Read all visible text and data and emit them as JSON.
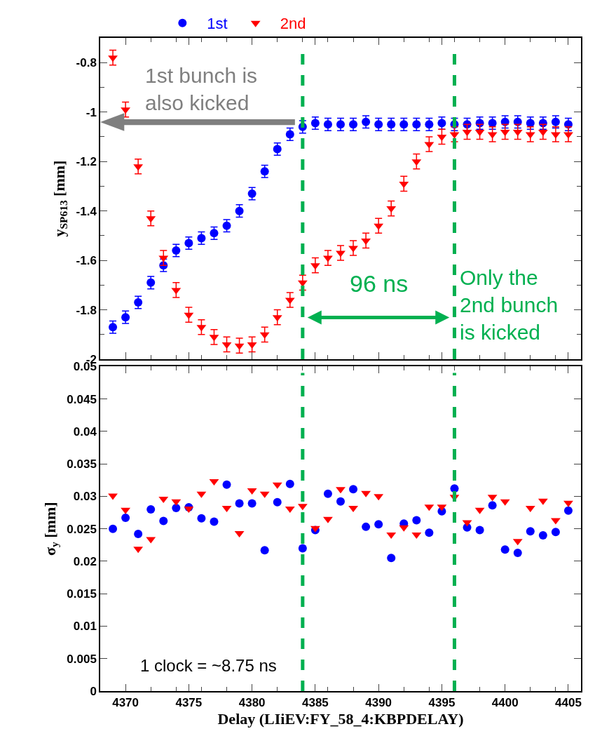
{
  "chart_data": [
    {
      "type": "scatter",
      "ylabel": "y$_{SP613}$ [mm]",
      "legend": "top",
      "tick_labels": "y",
      "x": [
        4369,
        4370,
        4371,
        4372,
        4373,
        4374,
        4375,
        4376,
        4377,
        4378,
        4379,
        4380,
        4381,
        4382,
        4383,
        4384,
        4385,
        4386,
        4387,
        4388,
        4389,
        4390,
        4391,
        4392,
        4393,
        4394,
        4395,
        4396,
        4397,
        4398,
        4399,
        4400,
        4401,
        4402,
        4403,
        4404,
        4405
      ],
      "xlim": [
        4368,
        4406
      ],
      "xticks": [
        4370,
        4375,
        4380,
        4385,
        4390,
        4395,
        4400,
        4405
      ],
      "ylim": [
        -2,
        -0.7
      ],
      "yticks": [
        -2,
        -1.8,
        -1.6,
        -1.4,
        -1.2,
        -1,
        -0.8
      ],
      "series": [
        {
          "name": "1st",
          "color": "#0000ff",
          "marker": "circle",
          "values": [
            -1.87,
            -1.83,
            -1.77,
            -1.69,
            -1.62,
            -1.56,
            -1.53,
            -1.51,
            -1.49,
            -1.46,
            -1.4,
            -1.33,
            -1.24,
            -1.15,
            -1.09,
            -1.06,
            -1.045,
            -1.05,
            -1.05,
            -1.05,
            -1.04,
            -1.05,
            -1.05,
            -1.05,
            -1.05,
            -1.05,
            -1.045,
            -1.05,
            -1.05,
            -1.045,
            -1.045,
            -1.04,
            -1.04,
            -1.045,
            -1.045,
            -1.04,
            -1.05
          ],
          "errors": [
            0.025,
            0.025,
            0.025,
            0.025,
            0.025,
            0.025,
            0.025,
            0.025,
            0.025,
            0.025,
            0.025,
            0.025,
            0.025,
            0.025,
            0.025,
            0.025,
            0.025,
            0.025,
            0.025,
            0.025,
            0.025,
            0.025,
            0.025,
            0.025,
            0.025,
            0.025,
            0.025,
            0.025,
            0.025,
            0.025,
            0.025,
            0.025,
            0.025,
            0.025,
            0.025,
            0.025,
            0.025
          ]
        },
        {
          "name": "2nd",
          "color": "#ff0000",
          "marker": "triangle",
          "values": [
            -0.78,
            -0.99,
            -1.22,
            -1.43,
            -1.59,
            -1.72,
            -1.82,
            -1.87,
            -1.91,
            -1.94,
            -1.945,
            -1.94,
            -1.9,
            -1.83,
            -1.76,
            -1.69,
            -1.62,
            -1.59,
            -1.57,
            -1.55,
            -1.52,
            -1.46,
            -1.39,
            -1.29,
            -1.2,
            -1.13,
            -1.1,
            -1.09,
            -1.08,
            -1.08,
            -1.09,
            -1.08,
            -1.08,
            -1.09,
            -1.08,
            -1.09,
            -1.09
          ],
          "errors": [
            0.03,
            0.03,
            0.03,
            0.03,
            0.03,
            0.03,
            0.03,
            0.03,
            0.03,
            0.03,
            0.03,
            0.03,
            0.03,
            0.03,
            0.03,
            0.03,
            0.03,
            0.03,
            0.03,
            0.03,
            0.03,
            0.03,
            0.03,
            0.03,
            0.03,
            0.03,
            0.03,
            0.03,
            0.03,
            0.03,
            0.03,
            0.03,
            0.03,
            0.03,
            0.03,
            0.03,
            0.03
          ]
        }
      ],
      "ref_lines": [
        {
          "axis": "x",
          "value": 4384,
          "color": "#00b050",
          "line_style": "dashed"
        },
        {
          "axis": "x",
          "value": 4396,
          "color": "#00b050",
          "line_style": "dashed"
        }
      ],
      "annotations": [
        "1st bunch is also kicked",
        "96 ns",
        "Only the 2nd bunch is kicked"
      ]
    },
    {
      "type": "scatter",
      "xlabel": "Delay (LIiEV:FY_58_4:KBPDELAY)",
      "ylabel": "σ$_{y}$ [mm]",
      "x": [
        4369,
        4370,
        4371,
        4372,
        4373,
        4374,
        4375,
        4376,
        4377,
        4378,
        4379,
        4380,
        4381,
        4382,
        4383,
        4384,
        4385,
        4386,
        4387,
        4388,
        4389,
        4390,
        4391,
        4392,
        4393,
        4394,
        4395,
        4396,
        4397,
        4398,
        4399,
        4400,
        4401,
        4402,
        4403,
        4404,
        4405
      ],
      "xlim": [
        4368,
        4406
      ],
      "xticks": [
        4370,
        4375,
        4380,
        4385,
        4390,
        4395,
        4400,
        4405
      ],
      "ylim": [
        0,
        0.05
      ],
      "yticks": [
        0,
        0.005,
        0.01,
        0.015,
        0.02,
        0.025,
        0.03,
        0.035,
        0.04,
        0.045,
        0.05
      ],
      "series": [
        {
          "color": "#0000ff",
          "marker": "circle",
          "values": [
            0.025,
            0.0267,
            0.0242,
            0.028,
            0.0262,
            0.0282,
            0.0283,
            0.0266,
            0.0261,
            0.0318,
            0.0289,
            0.0289,
            0.0217,
            0.0291,
            0.0319,
            0.022,
            0.0248,
            0.0304,
            0.0292,
            0.0311,
            0.0253,
            0.0257,
            0.0205,
            0.0258,
            0.0263,
            0.0244,
            0.0277,
            0.0312,
            0.0252,
            0.0248,
            0.0286,
            0.0218,
            0.0213,
            0.0246,
            0.024,
            0.0245,
            0.0278
          ]
        },
        {
          "color": "#ff0000",
          "marker": "triangle",
          "values": [
            0.0301,
            0.0279,
            0.0219,
            0.0234,
            0.0296,
            0.0292,
            0.0281,
            0.0304,
            0.0323,
            0.0282,
            0.0243,
            0.0309,
            0.0304,
            0.0318,
            0.0281,
            0.0285,
            0.0251,
            0.0265,
            0.0311,
            0.0282,
            0.0305,
            0.03,
            0.0241,
            0.0252,
            0.0241,
            0.0284,
            0.0284,
            0.0299,
            0.026,
            0.0279,
            0.0299,
            0.0292,
            0.0231,
            0.0282,
            0.0293,
            0.0263,
            0.029
          ]
        }
      ],
      "ref_lines": [
        {
          "axis": "x",
          "value": 4384,
          "color": "#00b050",
          "line_style": "dashed"
        },
        {
          "axis": "x",
          "value": 4396,
          "color": "#00b050",
          "line_style": "dashed"
        }
      ],
      "annotations": [
        "1 clock = ~8.75 ns"
      ]
    }
  ]
}
